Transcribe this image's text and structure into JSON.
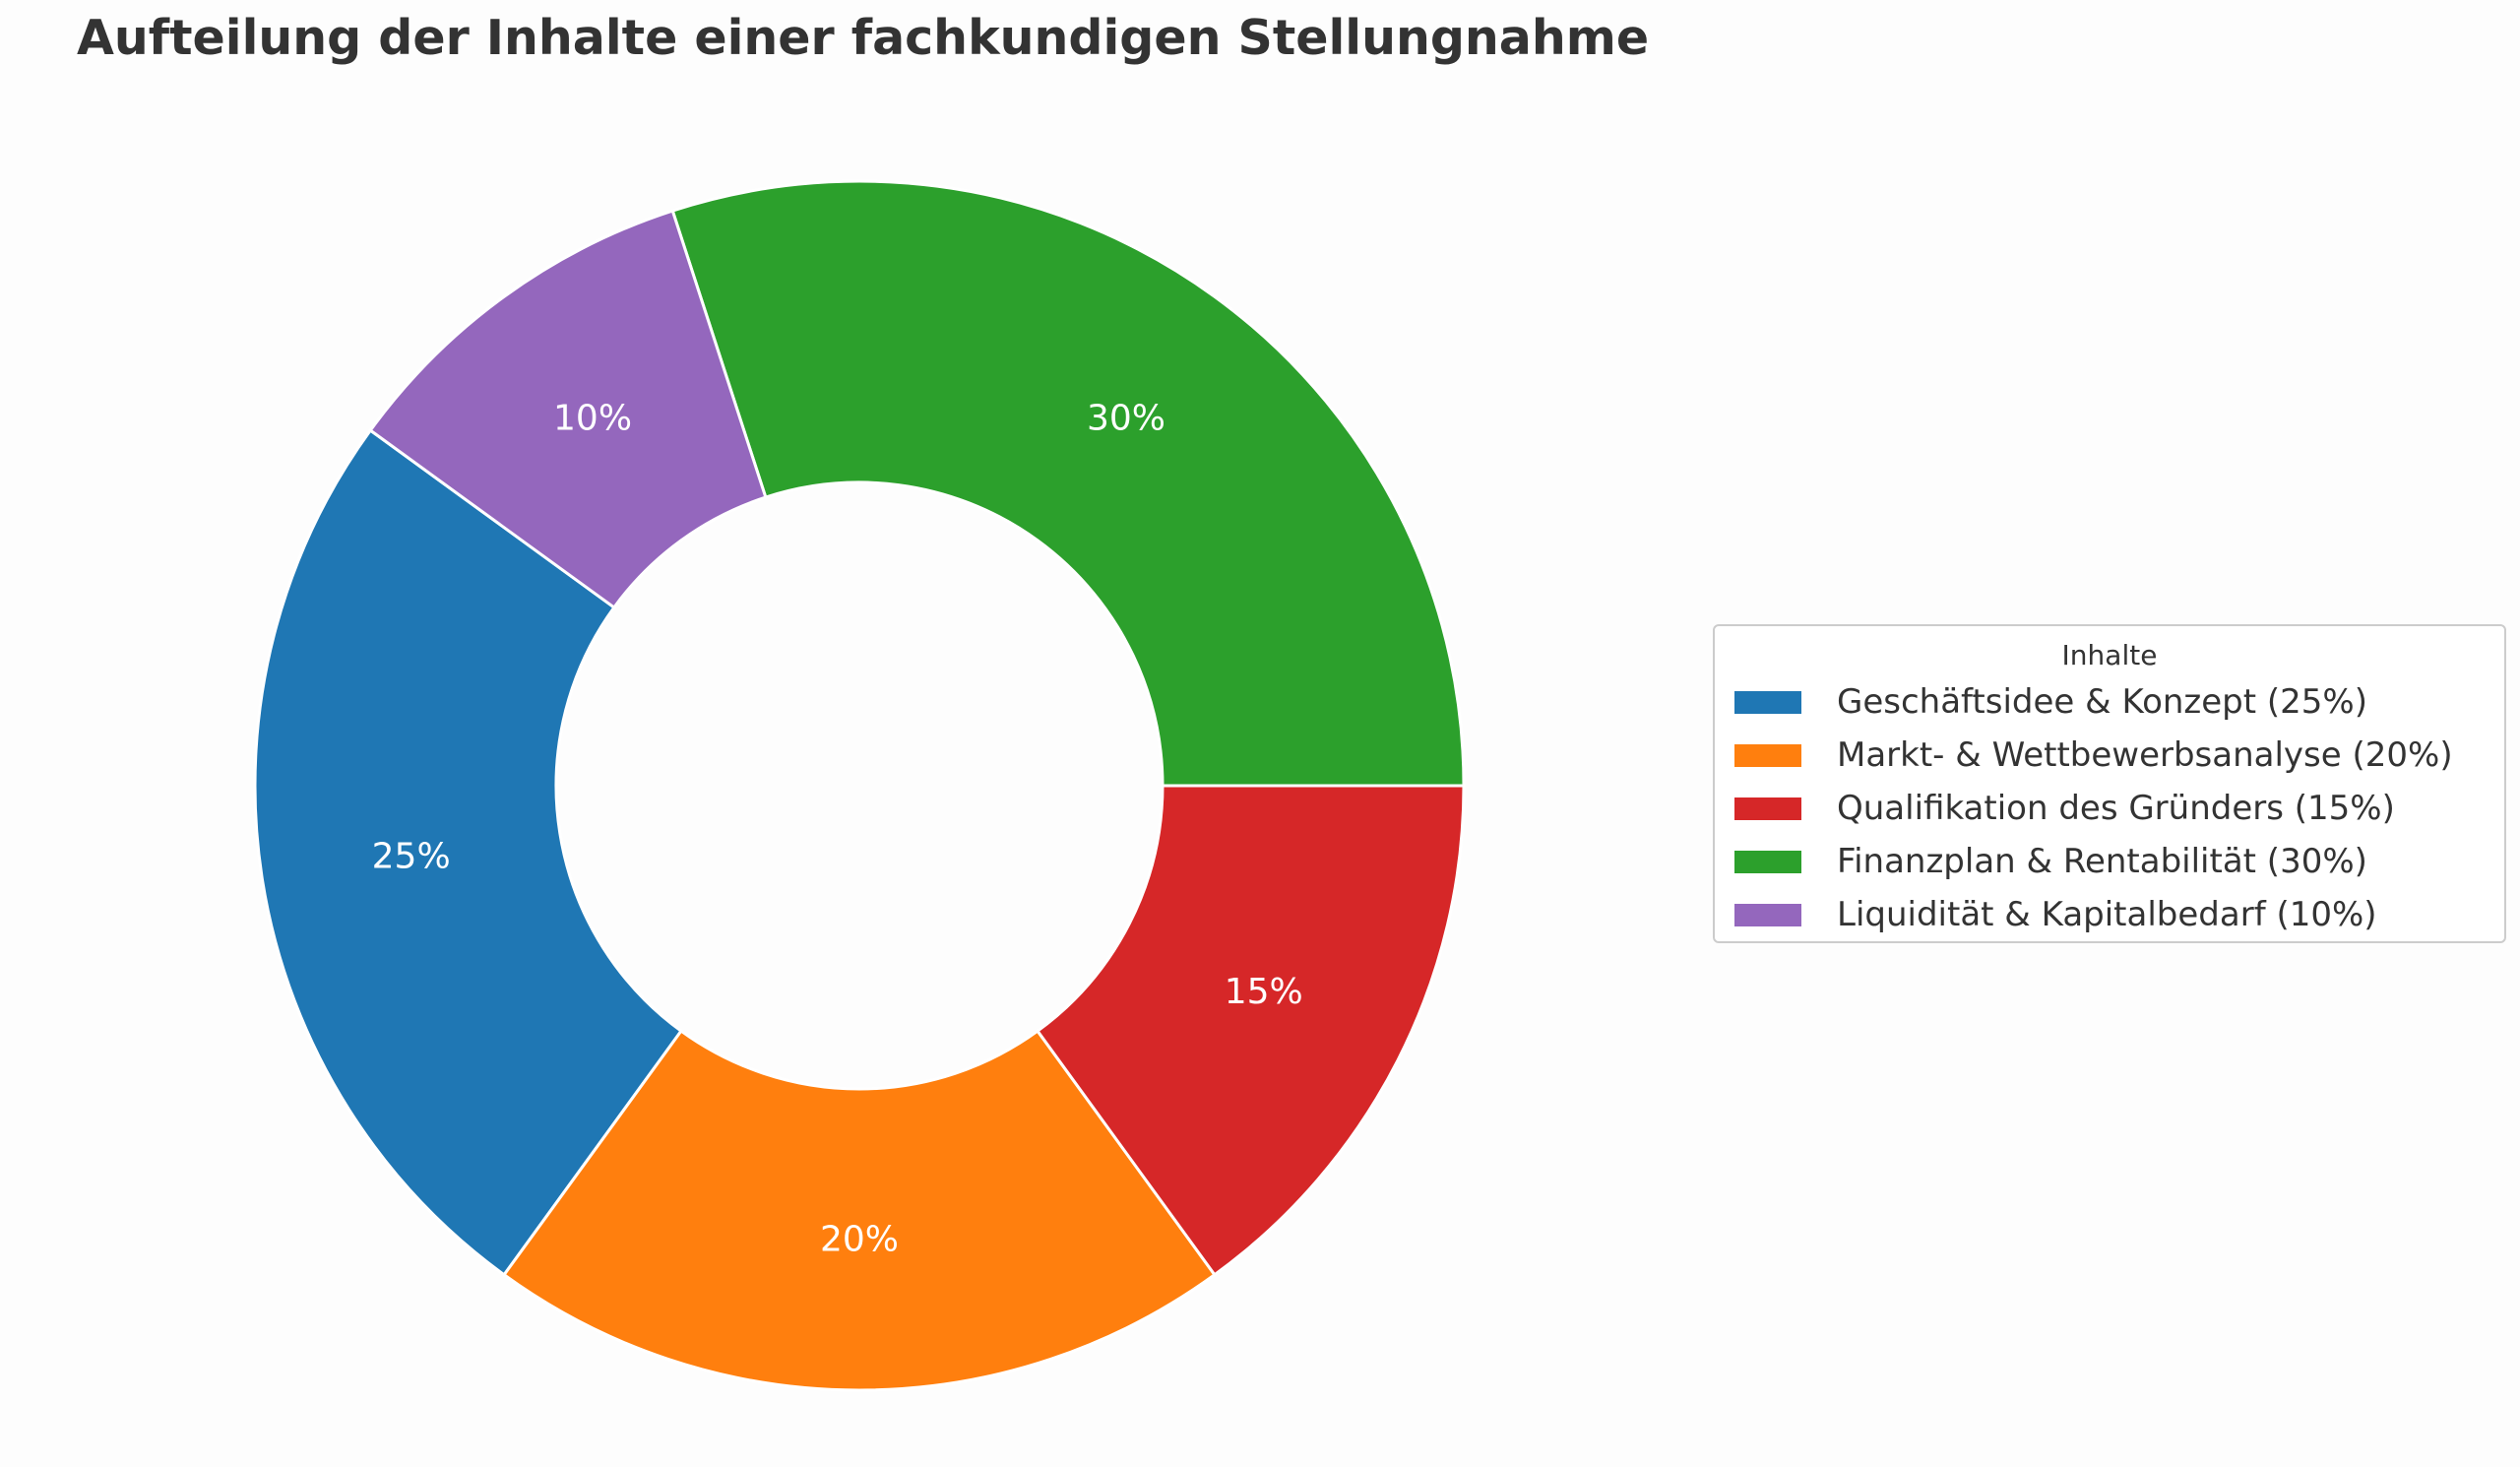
{
  "chart_data": {
    "type": "pie",
    "variant": "donut",
    "title": "Aufteilung der Inhalte einer fachkundigen Stellungnahme",
    "legend_title": "Inhalte",
    "legend_position": "center-right",
    "categories": [
      "Geschäftsidee & Konzept",
      "Markt- & Wettbewerbsanalyse",
      "Qualifikation des Gründers",
      "Finanzplan & Rentabilität",
      "Liquidität & Kapitalbedarf"
    ],
    "values": [
      25,
      20,
      15,
      30,
      10
    ],
    "percent_labels": [
      "25%",
      "20%",
      "15%",
      "30%",
      "10%"
    ],
    "legend_labels": [
      "Geschäftsidee & Konzept (25%)",
      "Markt- & Wettbewerbsanalyse (20%)",
      "Qualifikation des Gründers (15%)",
      "Finanzplan & Rentabilität (30%)",
      "Liquidität & Kapitalbedarf (10%)"
    ],
    "colors": [
      "#1f77b4",
      "#ff7f0e",
      "#d62728",
      "#2ca02c",
      "#9467bd"
    ],
    "start_angle_deg": 144,
    "direction": "counterclockwise"
  }
}
